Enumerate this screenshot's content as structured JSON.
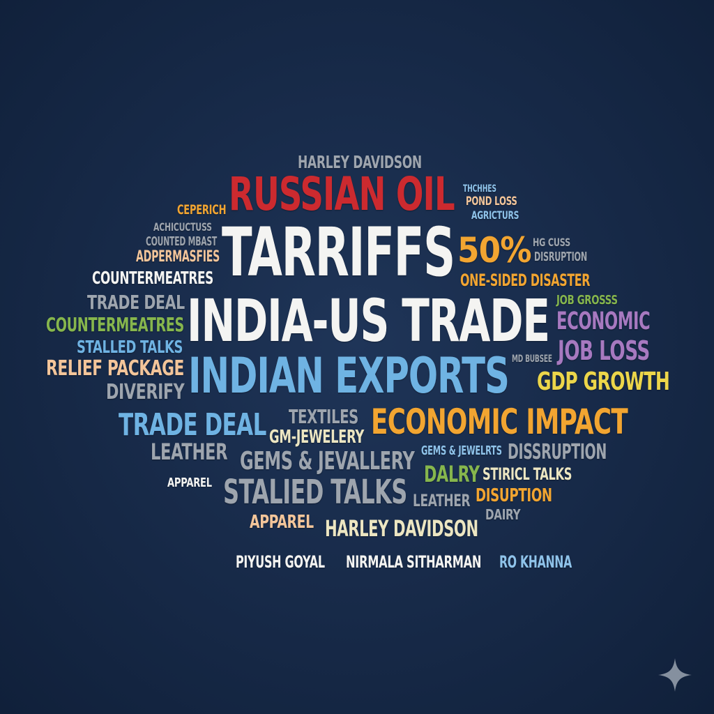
{
  "colors": {
    "background": "#182b4a",
    "red": "#cc2a2f",
    "white": "#f4f4f2",
    "blue": "#6fb3e3",
    "orange": "#f2a531",
    "purple": "#a779c0",
    "green": "#86b64d",
    "gray": "#9ea5ae",
    "peach": "#f3c59a",
    "yellow": "#ecd64a",
    "cream": "#ece6c2",
    "lightblue": "#8fc3ea"
  },
  "words": [
    {
      "id": "harley-davidson-top",
      "text": "HARLEY DAVIDSON",
      "color": "gray"
    },
    {
      "id": "russian-oil",
      "text": "RUSSIAN OIL",
      "color": "red"
    },
    {
      "id": "thches",
      "text": "THCHHES",
      "color": "lightblue"
    },
    {
      "id": "pond-loss",
      "text": "POND LOSS",
      "color": "peach"
    },
    {
      "id": "agricturs",
      "text": "AGRICTURS",
      "color": "lightblue"
    },
    {
      "id": "ceperich",
      "text": "CEPERICH",
      "color": "orange"
    },
    {
      "id": "achicuctuss",
      "text": "ACHICUCTUSS",
      "color": "gray"
    },
    {
      "id": "counted-mbast",
      "text": "COUNTED MBAST",
      "color": "gray"
    },
    {
      "id": "adpermasfies",
      "text": "ADPERMASFIES",
      "color": "peach"
    },
    {
      "id": "tarriffs",
      "text": "TARRIFFS",
      "color": "white"
    },
    {
      "id": "fifty-percent",
      "text": "50%",
      "color": "orange"
    },
    {
      "id": "hg-cuss",
      "text": "HG CUSS",
      "color": "gray"
    },
    {
      "id": "disruption-small",
      "text": "DISRUPTION",
      "color": "gray"
    },
    {
      "id": "countermeatres-white",
      "text": "COUNTERMEATRES",
      "color": "white"
    },
    {
      "id": "one-sided-disaster",
      "text": "ONE-SIDED DISASTER",
      "color": "orange"
    },
    {
      "id": "trade-deal-gray",
      "text": "TRADE DEAL",
      "color": "gray"
    },
    {
      "id": "india-us-trade",
      "text": "INDIA-US TRADE",
      "color": "white"
    },
    {
      "id": "job-grosss",
      "text": "JOB GROSSS",
      "color": "green"
    },
    {
      "id": "countermeatres-green",
      "text": "COUNTERMEATRES",
      "color": "green"
    },
    {
      "id": "economic",
      "text": "ECONOMIC",
      "color": "purple"
    },
    {
      "id": "stalled-talks",
      "text": "STALLED TALKS",
      "color": "blue"
    },
    {
      "id": "job-loss",
      "text": "JOB LOSS",
      "color": "purple"
    },
    {
      "id": "relief-package",
      "text": "RELIEF PACKAGE",
      "color": "peach"
    },
    {
      "id": "indian-exports",
      "text": "INDIAN EXPORTS",
      "color": "blue"
    },
    {
      "id": "md-bubsee",
      "text": "MD BUBSEE",
      "color": "gray"
    },
    {
      "id": "diverify",
      "text": "DIVERIFY",
      "color": "gray"
    },
    {
      "id": "gdp-growth",
      "text": "GDP GROWTH",
      "color": "yellow"
    },
    {
      "id": "textiles",
      "text": "TEXTILES",
      "color": "gray"
    },
    {
      "id": "trade-deal-blue",
      "text": "TRADE DEAL",
      "color": "blue"
    },
    {
      "id": "economic-impact",
      "text": "ECONOMIC IMPACT",
      "color": "orange"
    },
    {
      "id": "gm-jewelery",
      "text": "GM-JEWELERY",
      "color": "cream"
    },
    {
      "id": "leather-left",
      "text": "LEATHER",
      "color": "gray"
    },
    {
      "id": "gems-jewelrts",
      "text": "GEMS & JEWELRTS",
      "color": "lightblue"
    },
    {
      "id": "dissruption",
      "text": "DISSRUPTION",
      "color": "gray"
    },
    {
      "id": "gems-jevallery",
      "text": "GEMS & JEVALLERY",
      "color": "gray"
    },
    {
      "id": "dalry",
      "text": "DALRY",
      "color": "green"
    },
    {
      "id": "stiricl-talks",
      "text": "STIRICL TALKS",
      "color": "cream"
    },
    {
      "id": "apparel-left",
      "text": "APPAREL",
      "color": "white"
    },
    {
      "id": "stalied-talks",
      "text": "STALIED TALKS",
      "color": "gray"
    },
    {
      "id": "leather-mid",
      "text": "LEATHER",
      "color": "gray"
    },
    {
      "id": "disuption",
      "text": "DISUPTION",
      "color": "orange"
    },
    {
      "id": "dairy",
      "text": "DAIRY",
      "color": "gray"
    },
    {
      "id": "apparel-bottom",
      "text": "APPAREL",
      "color": "peach"
    },
    {
      "id": "harley-davidson-bottom",
      "text": "HARLEY DAVIDSON",
      "color": "cream"
    },
    {
      "id": "piyush-goyal",
      "text": "PIYUSH GOYAL",
      "color": "white"
    },
    {
      "id": "nirmala-sitharman",
      "text": "NIRMALA SITHARMAN",
      "color": "white"
    },
    {
      "id": "ro-khanna",
      "text": "RO KHANNA",
      "color": "lightblue"
    }
  ],
  "icons": {
    "corner": "sparkle-icon"
  }
}
